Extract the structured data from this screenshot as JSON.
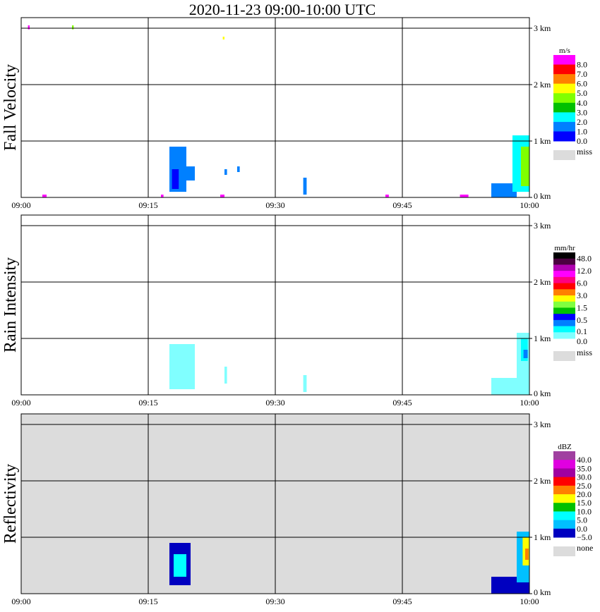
{
  "chart_data": [
    {
      "type": "heatmap",
      "title": "2020-11-23   09:00-10:00 UTC",
      "ylabel": "Fall Velocity",
      "unit": "m/s",
      "xticks": [
        "09:00",
        "09:15",
        "09:30",
        "09:45",
        "10:00"
      ],
      "yticks": [
        "0 km",
        "1 km",
        "2 km",
        "3 km"
      ],
      "xlim_min": [
        0,
        60
      ],
      "ylim_km": [
        0,
        3.2
      ],
      "grid": true,
      "legend_labels": [
        "8.0",
        "7.0",
        "6.0",
        "5.0",
        "4.0",
        "3.0",
        "2.0",
        "1.0",
        "0.0"
      ],
      "legend_colors": [
        "#ff00ff",
        "#ff0000",
        "#ff8000",
        "#ffff00",
        "#80ff00",
        "#00c000",
        "#00ffff",
        "#0080ff",
        "#0000ff"
      ],
      "miss_label": "miss",
      "echoes": [
        {
          "t": [
            17.5,
            19.5
          ],
          "h": [
            0.1,
            0.9
          ],
          "v": 1.5
        },
        {
          "t": [
            18.5,
            20.5
          ],
          "h": [
            0.3,
            0.55
          ],
          "v": 1.5
        },
        {
          "t": [
            17.8,
            18.6
          ],
          "h": [
            0.15,
            0.5
          ],
          "v": 0.5
        },
        {
          "t": [
            24,
            24.3
          ],
          "h": [
            0.4,
            0.5
          ],
          "v": 1.5
        },
        {
          "t": [
            25.5,
            25.8
          ],
          "h": [
            0.45,
            0.55
          ],
          "v": 1.5
        },
        {
          "t": [
            33.3,
            33.7
          ],
          "h": [
            0.05,
            0.35
          ],
          "v": 1.5
        },
        {
          "t": [
            55.5,
            58.5
          ],
          "h": [
            0.0,
            0.25
          ],
          "v": 1.5
        },
        {
          "t": [
            58,
            60
          ],
          "h": [
            0.1,
            1.1
          ],
          "v": 2.5
        },
        {
          "t": [
            59,
            60
          ],
          "h": [
            0.2,
            0.9
          ],
          "v": 4.5
        },
        {
          "t": [
            2.5,
            3
          ],
          "h": [
            0,
            0.05
          ],
          "v": 8.5
        },
        {
          "t": [
            16.5,
            16.8
          ],
          "h": [
            0,
            0.05
          ],
          "v": 8.5
        },
        {
          "t": [
            23.5,
            24
          ],
          "h": [
            0,
            0.05
          ],
          "v": 8.5
        },
        {
          "t": [
            43,
            43.4
          ],
          "h": [
            0,
            0.05
          ],
          "v": 8.5
        },
        {
          "t": [
            51.8,
            52.8
          ],
          "h": [
            0,
            0.05
          ],
          "v": 8.5
        },
        {
          "t": [
            0.8,
            1.0
          ],
          "h": [
            2.98,
            3.05
          ],
          "v": 8.5
        },
        {
          "t": [
            6,
            6.2
          ],
          "h": [
            2.98,
            3.05
          ],
          "v": 4.5
        },
        {
          "t": [
            23.8,
            24
          ],
          "h": [
            2.8,
            2.85
          ],
          "v": 5.5
        }
      ]
    },
    {
      "type": "heatmap",
      "ylabel": "Rain Intensity",
      "unit": "mm/hr",
      "xticks": [
        "09:00",
        "09:15",
        "09:30",
        "09:45",
        "10:00"
      ],
      "yticks": [
        "0 km",
        "1 km",
        "2 km",
        "3 km"
      ],
      "grid": true,
      "legend_labels": [
        "48.0",
        "12.0",
        "6.0",
        "3.0",
        "1.5",
        "0.5",
        "0.1",
        "0.0"
      ],
      "legend_colors": [
        "#000000",
        "#4b0040",
        "#b000b0",
        "#ff00ff",
        "#ff0080",
        "#ff0000",
        "#ff8000",
        "#ffff00",
        "#80ff40",
        "#00c000",
        "#0000ff",
        "#0080ff",
        "#00ffff",
        "#80ffff"
      ],
      "miss_label": "miss",
      "echoes": [
        {
          "t": [
            17.5,
            20.5
          ],
          "h": [
            0.1,
            0.9
          ],
          "v": 0
        },
        {
          "t": [
            24,
            24.3
          ],
          "h": [
            0.2,
            0.5
          ],
          "v": 0
        },
        {
          "t": [
            33.3,
            33.7
          ],
          "h": [
            0.05,
            0.35
          ],
          "v": 0
        },
        {
          "t": [
            55.5,
            60
          ],
          "h": [
            0.0,
            0.3
          ],
          "v": 0
        },
        {
          "t": [
            58.5,
            60
          ],
          "h": [
            0.2,
            1.1
          ],
          "v": 0
        },
        {
          "t": [
            59,
            59.8
          ],
          "h": [
            0.6,
            1.0
          ],
          "v": 1
        },
        {
          "t": [
            59.3,
            59.8
          ],
          "h": [
            0.65,
            0.8
          ],
          "v": 2
        }
      ]
    },
    {
      "type": "heatmap",
      "ylabel": "Reflectivity",
      "unit": "dBZ",
      "xticks": [
        "09:00",
        "09:15",
        "09:30",
        "09:45",
        "10:00"
      ],
      "yticks": [
        "0 km",
        "1 km",
        "2 km",
        "3 km"
      ],
      "grid": true,
      "legend_labels": [
        "40.0",
        "35.0",
        "30.0",
        "25.0",
        "20.0",
        "15.0",
        "10.0",
        "5.0",
        "0.0",
        "−5.0"
      ],
      "legend_colors": [
        "#a040a0",
        "#e000e0",
        "#a000a0",
        "#ff0000",
        "#ff8000",
        "#ffff00",
        "#00c000",
        "#00ffff",
        "#00c0ff",
        "#0000c0"
      ],
      "miss_label": "none",
      "echoes": [
        {
          "t": [
            17.5,
            20
          ],
          "h": [
            0.15,
            0.9
          ],
          "v": 0
        },
        {
          "t": [
            18,
            19.5
          ],
          "h": [
            0.3,
            0.7
          ],
          "v": 2
        },
        {
          "t": [
            55.5,
            60
          ],
          "h": [
            0.0,
            0.3
          ],
          "v": 0
        },
        {
          "t": [
            58.5,
            60
          ],
          "h": [
            0.2,
            1.1
          ],
          "v": 1
        },
        {
          "t": [
            59.2,
            60
          ],
          "h": [
            0.5,
            1.0
          ],
          "v": 4
        },
        {
          "t": [
            59.5,
            59.9
          ],
          "h": [
            0.6,
            0.8
          ],
          "v": 5
        }
      ]
    }
  ]
}
